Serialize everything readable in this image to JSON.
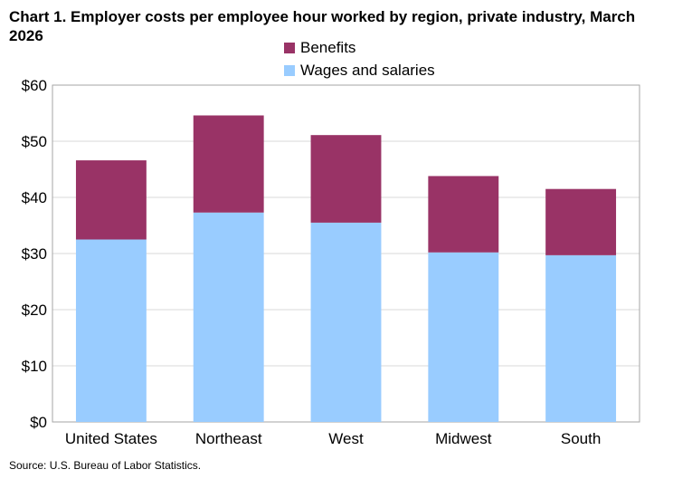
{
  "chart_data": {
    "type": "bar",
    "stacked": true,
    "title": "Chart 1. Employer costs per employee hour worked by region, private industry, March 2026",
    "categories": [
      "United States",
      "Northeast",
      "West",
      "Midwest",
      "South"
    ],
    "series": [
      {
        "name": "Wages and salaries",
        "color": "#99CCFF",
        "values": [
          32.5,
          37.3,
          35.5,
          30.2,
          29.7
        ]
      },
      {
        "name": "Benefits",
        "color": "#993366",
        "values": [
          14.1,
          17.3,
          15.6,
          13.6,
          11.8
        ]
      }
    ],
    "ylim": [
      0,
      60
    ],
    "yticks": [
      0,
      10,
      20,
      30,
      40,
      50,
      60
    ],
    "ytick_labels": [
      "$0",
      "$10",
      "$20",
      "$30",
      "$40",
      "$50",
      "$60"
    ],
    "xlabel": "",
    "ylabel": "",
    "grid": true,
    "legend_position": "top-center",
    "legend_order": [
      "Benefits",
      "Wages and salaries"
    ]
  },
  "source": "Source: U.S. Bureau of Labor Statistics."
}
